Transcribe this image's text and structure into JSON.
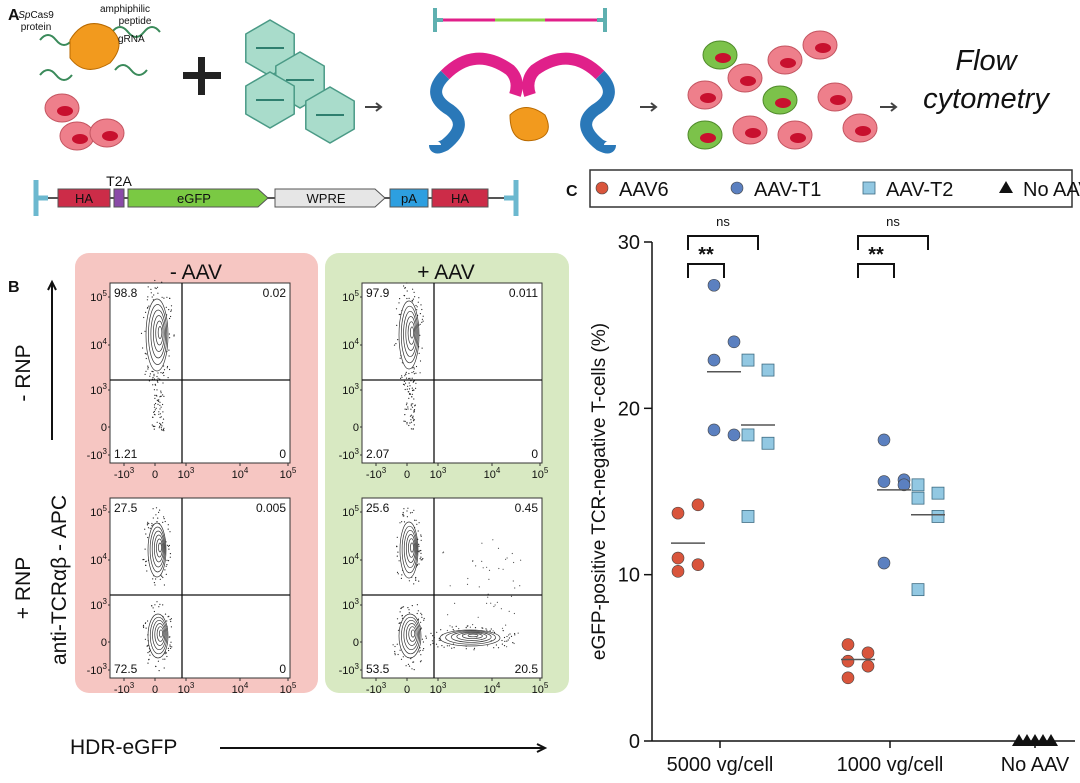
{
  "panel_a": {
    "label": "A",
    "cas9_italic": "Sp",
    "cas9_name": "Cas9",
    "protein": "protein",
    "peptide_1": "amphiphilic",
    "peptide_2": "peptide",
    "grna": "gRNA",
    "readout_1": "Flow",
    "readout_2": "cytometry",
    "construct": [
      "HA",
      "T2A",
      "eGFP",
      "WPRE",
      "pA",
      "HA"
    ]
  },
  "panel_b": {
    "label": "B",
    "columns": [
      "- AAV",
      "+ AAV"
    ],
    "rows": [
      "- RNP",
      "+ RNP"
    ],
    "y_label": "anti-TCRαβ - APC",
    "x_label": "HDR-eGFP",
    "xticks": [
      {
        "base": "-10",
        "exp": "3"
      },
      {
        "base": "0"
      },
      {
        "base": "10",
        "exp": "3"
      },
      {
        "base": "10",
        "exp": "4"
      },
      {
        "base": "10",
        "exp": "5"
      }
    ],
    "yticks": [
      {
        "base": "10",
        "exp": "5"
      },
      {
        "base": "10",
        "exp": "4"
      },
      {
        "base": "10",
        "exp": "3"
      },
      {
        "base": "0"
      },
      {
        "base": "-10",
        "exp": "3"
      }
    ],
    "plots": [
      {
        "quadrants": [
          98.8,
          0.02,
          1.21,
          0
        ]
      },
      {
        "quadrants": [
          97.9,
          0.011,
          2.07,
          0
        ]
      },
      {
        "quadrants": [
          27.5,
          0.005,
          72.5,
          0
        ]
      },
      {
        "quadrants": [
          25.6,
          0.45,
          53.5,
          20.5
        ]
      }
    ]
  },
  "chart_data": {
    "type": "dotplot",
    "panel_label": "C",
    "y_label": "eGFP-positive TCR-negative T-cells (%)",
    "categories": [
      "5000 vg/cell",
      "1000 vg/cell",
      "No AAV"
    ],
    "ylim": [
      0,
      30
    ],
    "yticks": [
      0,
      10,
      20,
      30
    ],
    "series": [
      {
        "name": "AAV6",
        "color": "#d9553c",
        "marker": "circle",
        "values": [
          [
            13.7,
            14.2,
            11.0,
            10.6,
            10.2
          ],
          [
            5.8,
            5.3,
            4.8,
            4.5,
            3.8
          ],
          null
        ],
        "means": [
          11.9,
          4.9,
          null
        ]
      },
      {
        "name": "AAV-T1",
        "color": "#5b80c0",
        "marker": "circle",
        "values": [
          [
            27.4,
            24.0,
            22.9,
            18.4,
            18.7
          ],
          [
            18.1,
            15.7,
            15.6,
            15.4,
            10.7
          ],
          null
        ],
        "means": [
          22.2,
          15.1,
          null
        ]
      },
      {
        "name": "AAV-T2",
        "color": "#92c8e2",
        "marker": "square",
        "values": [
          [
            22.9,
            22.3,
            18.4,
            17.9,
            13.5
          ],
          [
            15.4,
            14.9,
            14.6,
            13.5,
            9.1
          ],
          null
        ],
        "means": [
          19.0,
          13.6,
          null
        ]
      },
      {
        "name": "No AAV",
        "color": "#111111",
        "marker": "triangle",
        "values": [
          null,
          null,
          [
            0,
            0,
            0,
            0,
            0
          ]
        ],
        "means": [
          null,
          null,
          null
        ]
      }
    ],
    "significance": [
      [
        "**",
        "ns"
      ],
      [
        "**",
        "ns"
      ]
    ]
  }
}
